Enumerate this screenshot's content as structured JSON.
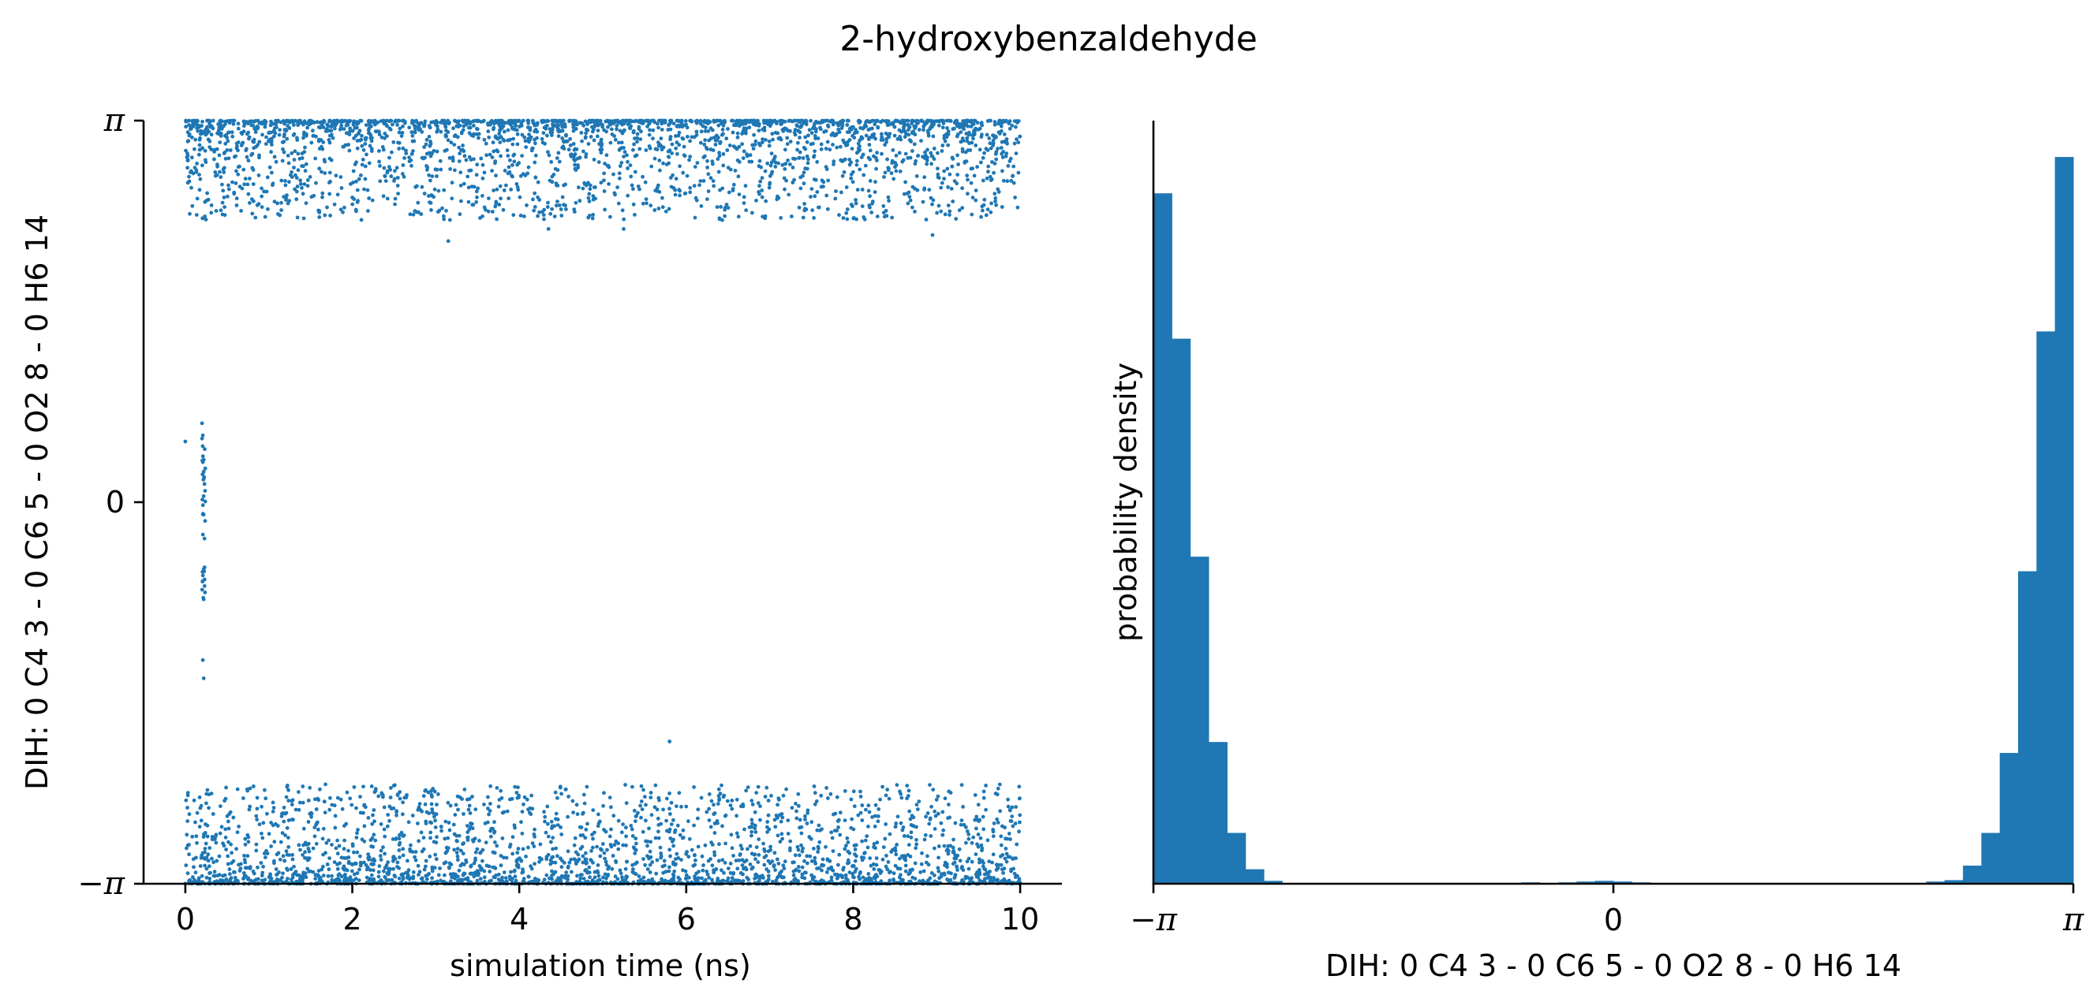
{
  "figure_title": "2-hydroxybenzaldehyde",
  "colors": {
    "series": "#1f77b4"
  },
  "chart_data": [
    {
      "type": "scatter",
      "xlabel": "simulation time (ns)",
      "ylabel": "DIH:  0 C4 3 -  0 C6 5 -  0 O2 8 -  0 H6 14",
      "xlim": [
        -0.5,
        10.5
      ],
      "ylim": [
        -3.14159,
        3.14159
      ],
      "x_ticks": [
        0,
        2,
        4,
        6,
        8,
        10
      ],
      "x_tick_labels": [
        "0",
        "2",
        "4",
        "6",
        "8",
        "10"
      ],
      "y_ticks": [
        -3.14159,
        0,
        3.14159
      ],
      "y_tick_labels": [
        "−π",
        "0",
        "π"
      ],
      "description_of_points": {
        "time_range_ns": [
          0,
          10
        ],
        "upper_band_range": [
          2.15,
          3.14159
        ],
        "lower_band_range": [
          -3.14159,
          -2.2
        ],
        "transition_points": [
          [
            0.0,
            0.5
          ],
          [
            0.2,
            0.65
          ],
          [
            0.21,
            0.55
          ],
          [
            0.22,
            0.35
          ],
          [
            0.22,
            0.25
          ],
          [
            0.23,
            0.15
          ],
          [
            0.22,
            0.05
          ],
          [
            0.21,
            -0.1
          ],
          [
            0.23,
            -0.3
          ],
          [
            0.22,
            -0.55
          ],
          [
            0.21,
            -0.65
          ],
          [
            0.22,
            -0.8
          ],
          [
            0.21,
            -1.3
          ],
          [
            0.22,
            -1.45
          ],
          [
            5.8,
            -1.97
          ]
        ],
        "outliers": [
          [
            3.15,
            2.15
          ],
          [
            4.35,
            2.25
          ],
          [
            5.25,
            2.25
          ],
          [
            8.95,
            2.2
          ]
        ]
      },
      "grid": false
    },
    {
      "type": "bar",
      "xlabel": "DIH:  0 C4 3 -  0 C6 5 -  0 O2 8 -  0 H6 14",
      "ylabel": "probability density",
      "xlim": [
        -3.14159,
        3.14159
      ],
      "x_ticks": [
        -3.14159,
        0,
        3.14159
      ],
      "x_tick_labels": [
        "−π",
        "0",
        "π"
      ],
      "y_ticks_shown": false,
      "bins_start": -3.14159,
      "bin_width": 0.12566,
      "values": [
        0.95,
        0.75,
        0.45,
        0.195,
        0.07,
        0.02,
        0.004,
        0,
        0,
        0,
        0,
        0,
        0,
        0,
        0,
        0,
        0,
        0,
        0,
        0,
        0.002,
        0,
        0.002,
        0.003,
        0.004,
        0.003,
        0.002,
        0,
        0,
        0,
        0,
        0,
        0,
        0,
        0,
        0,
        0,
        0,
        0,
        0,
        0,
        0,
        0.003,
        0.005,
        0.025,
        0.07,
        0.18,
        0.43,
        0.76,
        1.0
      ],
      "ylim": [
        0,
        1.05
      ],
      "grid": false
    }
  ]
}
